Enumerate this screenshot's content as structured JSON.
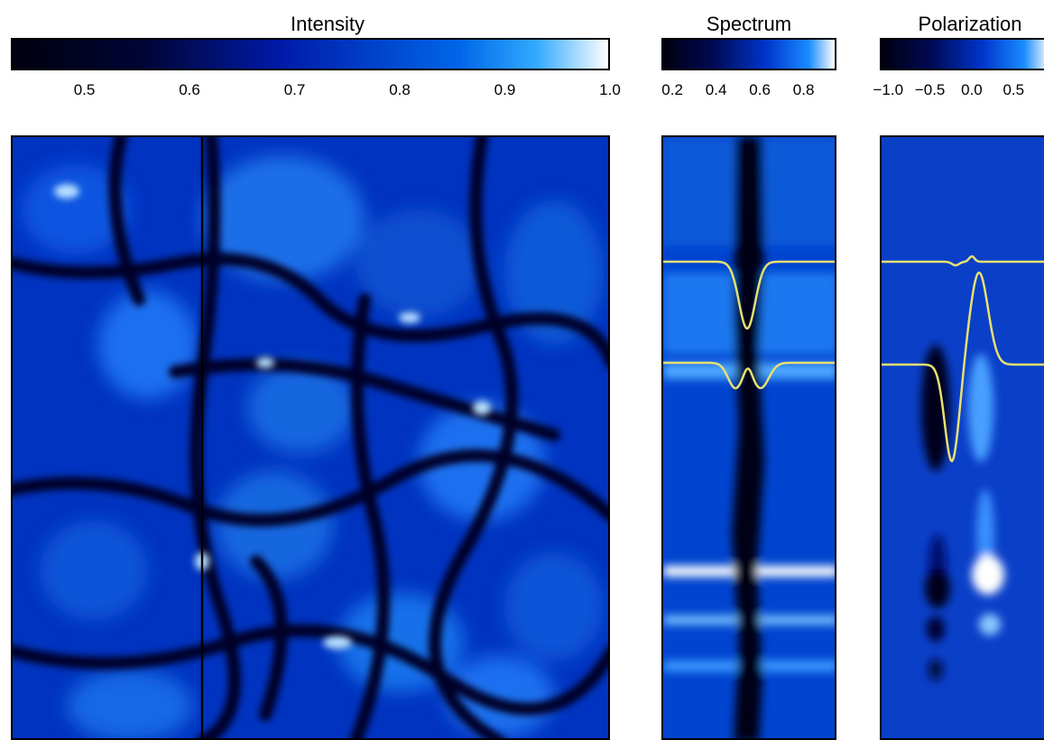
{
  "chart_data": [
    {
      "type": "heatmap",
      "title": "Intensity",
      "colorbar": {
        "ticks": [
          "0.5",
          "0.6",
          "0.7",
          "0.8",
          "0.9",
          "1.0"
        ],
        "tick_values": [
          0.5,
          0.6,
          0.7,
          0.8,
          0.9,
          1.0
        ],
        "range": [
          0.43,
          1.0
        ]
      },
      "slit_marker": "vertical line at ~31% of panel width"
    },
    {
      "type": "heatmap",
      "title": "Spectrum",
      "colorbar": {
        "ticks": [
          "0.2",
          "0.4",
          "0.6",
          "0.8"
        ],
        "tick_values": [
          0.2,
          0.4,
          0.6,
          0.8
        ],
        "range": [
          0.15,
          0.95
        ]
      },
      "overlay_profiles": [
        "single absorption dip",
        "split double dip"
      ]
    },
    {
      "type": "heatmap",
      "title": "Polarization",
      "colorbar": {
        "ticks": [
          "−1.0",
          "−0.5",
          "0.0",
          "0.5"
        ],
        "tick_values": [
          -1.0,
          -0.5,
          0.0,
          0.5
        ],
        "range": [
          -1.1,
          0.95
        ]
      },
      "overlay_profiles": [
        "near-flat profile",
        "antisymmetric profile"
      ]
    }
  ],
  "colors": {
    "dark": "#00001a",
    "mid": "#0033cc",
    "light": "#ffffff",
    "profile": "#e8e070"
  }
}
